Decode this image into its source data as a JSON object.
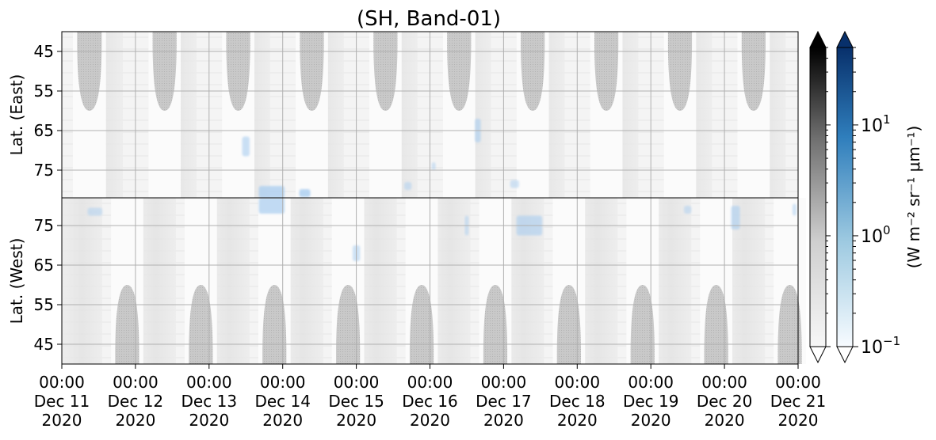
{
  "chart_data": {
    "type": "heatmap",
    "title": "(SH, Band-01)",
    "panels": [
      {
        "name": "east",
        "ylabel": "Lat. (East)",
        "yticks": [
          45,
          55,
          65,
          75
        ],
        "ylim": [
          40,
          82
        ],
        "inverted": true
      },
      {
        "name": "west",
        "ylabel": "Lat. (West)",
        "yticks": [
          75,
          65,
          55,
          45
        ],
        "ylim": [
          82,
          40
        ],
        "inverted": false
      }
    ],
    "xticks": [
      {
        "time": "00:00",
        "date": "Dec 11",
        "year": "2020"
      },
      {
        "time": "00:00",
        "date": "Dec 12",
        "year": "2020"
      },
      {
        "time": "00:00",
        "date": "Dec 13",
        "year": "2020"
      },
      {
        "time": "00:00",
        "date": "Dec 14",
        "year": "2020"
      },
      {
        "time": "00:00",
        "date": "Dec 15",
        "year": "2020"
      },
      {
        "time": "00:00",
        "date": "Dec 16",
        "year": "2020"
      },
      {
        "time": "00:00",
        "date": "Dec 17",
        "year": "2020"
      },
      {
        "time": "00:00",
        "date": "Dec 18",
        "year": "2020"
      },
      {
        "time": "00:00",
        "date": "Dec 19",
        "year": "2020"
      },
      {
        "time": "00:00",
        "date": "Dec 20",
        "year": "2020"
      },
      {
        "time": "00:00",
        "date": "Dec 21",
        "year": "2020"
      }
    ],
    "xlim": [
      "2020-12-11 00:00",
      "2020-12-21 00:00"
    ],
    "grid": true,
    "colorbar": {
      "label": "(W m⁻² sr⁻¹ μm⁻¹)",
      "scale": "log",
      "range": [
        0.1,
        50
      ],
      "ticks": [
        {
          "base": "10",
          "exp": "1",
          "value": 10
        },
        {
          "base": "10",
          "exp": "0",
          "value": 1
        },
        {
          "base": "10",
          "exp": "−1",
          "value": 0.1
        }
      ],
      "colormaps": [
        "Greys",
        "Blues"
      ],
      "extend": "both"
    },
    "nodata_color": "#c4c4c4",
    "daylight_gaps": {
      "east": [
        {
          "date": "2020-12-11",
          "center_hour": 9.0,
          "width_hours": 8.0,
          "min_lat": 60
        },
        {
          "date": "2020-12-12",
          "center_hour": 9.5,
          "width_hours": 7.8,
          "min_lat": 60
        },
        {
          "date": "2020-12-13",
          "center_hour": 9.5,
          "width_hours": 7.8,
          "min_lat": 60
        },
        {
          "date": "2020-12-14",
          "center_hour": 9.5,
          "width_hours": 7.8,
          "min_lat": 60
        },
        {
          "date": "2020-12-15",
          "center_hour": 9.5,
          "width_hours": 7.8,
          "min_lat": 60
        },
        {
          "date": "2020-12-16",
          "center_hour": 9.5,
          "width_hours": 7.8,
          "min_lat": 60
        },
        {
          "date": "2020-12-17",
          "center_hour": 9.5,
          "width_hours": 7.8,
          "min_lat": 60
        },
        {
          "date": "2020-12-18",
          "center_hour": 9.5,
          "width_hours": 7.8,
          "min_lat": 60
        },
        {
          "date": "2020-12-19",
          "center_hour": 9.5,
          "width_hours": 7.8,
          "min_lat": 60
        },
        {
          "date": "2020-12-20",
          "center_hour": 9.5,
          "width_hours": 7.8,
          "min_lat": 60
        }
      ],
      "west": [
        {
          "date": "2020-12-11",
          "center_hour": 21.3,
          "width_hours": 7.8,
          "min_lat": 60
        },
        {
          "date": "2020-12-12",
          "center_hour": 21.3,
          "width_hours": 7.8,
          "min_lat": 60
        },
        {
          "date": "2020-12-13",
          "center_hour": 21.3,
          "width_hours": 7.8,
          "min_lat": 60
        },
        {
          "date": "2020-12-14",
          "center_hour": 21.3,
          "width_hours": 7.8,
          "min_lat": 60
        },
        {
          "date": "2020-12-15",
          "center_hour": 21.3,
          "width_hours": 7.8,
          "min_lat": 60
        },
        {
          "date": "2020-12-16",
          "center_hour": 21.3,
          "width_hours": 7.8,
          "min_lat": 60
        },
        {
          "date": "2020-12-17",
          "center_hour": 21.3,
          "width_hours": 7.8,
          "min_lat": 60
        },
        {
          "date": "2020-12-18",
          "center_hour": 21.3,
          "width_hours": 7.8,
          "min_lat": 60
        },
        {
          "date": "2020-12-19",
          "center_hour": 21.3,
          "width_hours": 7.8,
          "min_lat": 60
        },
        {
          "date": "2020-12-20",
          "center_hour": 21.3,
          "width_hours": 7.8,
          "min_lat": 60
        }
      ]
    },
    "blue_patches": [
      {
        "panel": "east",
        "t": 2.5,
        "lat": 69,
        "dt": 0.1,
        "dlat": 5,
        "value": 0.5
      },
      {
        "panel": "east",
        "t": 2.85,
        "lat": 80.5,
        "dt": 0.35,
        "dlat": 3,
        "value": 0.8
      },
      {
        "panel": "east",
        "t": 3.3,
        "lat": 80.8,
        "dt": 0.15,
        "dlat": 2,
        "value": 0.9
      },
      {
        "panel": "east",
        "t": 4.7,
        "lat": 79,
        "dt": 0.1,
        "dlat": 2,
        "value": 0.3
      },
      {
        "panel": "east",
        "t": 5.05,
        "lat": 74,
        "dt": 0.05,
        "dlat": 2,
        "value": 0.3
      },
      {
        "panel": "east",
        "t": 5.65,
        "lat": 65,
        "dt": 0.08,
        "dlat": 6,
        "value": 0.5
      },
      {
        "panel": "east",
        "t": 6.15,
        "lat": 78.5,
        "dt": 0.12,
        "dlat": 2,
        "value": 0.3
      },
      {
        "panel": "west",
        "t": 0.45,
        "lat": 78.5,
        "dt": 0.2,
        "dlat": 2,
        "value": 0.3
      },
      {
        "panel": "west",
        "t": 2.85,
        "lat": 80,
        "dt": 0.35,
        "dlat": 4,
        "value": 0.7
      },
      {
        "panel": "west",
        "t": 4.0,
        "lat": 68,
        "dt": 0.1,
        "dlat": 4,
        "value": 0.4
      },
      {
        "panel": "west",
        "t": 5.5,
        "lat": 75,
        "dt": 0.05,
        "dlat": 5,
        "value": 0.3
      },
      {
        "panel": "west",
        "t": 6.35,
        "lat": 75,
        "dt": 0.35,
        "dlat": 5,
        "value": 0.5
      },
      {
        "panel": "west",
        "t": 8.5,
        "lat": 79,
        "dt": 0.1,
        "dlat": 2,
        "value": 0.3
      },
      {
        "panel": "west",
        "t": 9.15,
        "lat": 77,
        "dt": 0.12,
        "dlat": 6,
        "value": 0.5
      },
      {
        "panel": "west",
        "t": 9.95,
        "lat": 79,
        "dt": 0.05,
        "dlat": 3,
        "value": 0.3
      }
    ]
  }
}
